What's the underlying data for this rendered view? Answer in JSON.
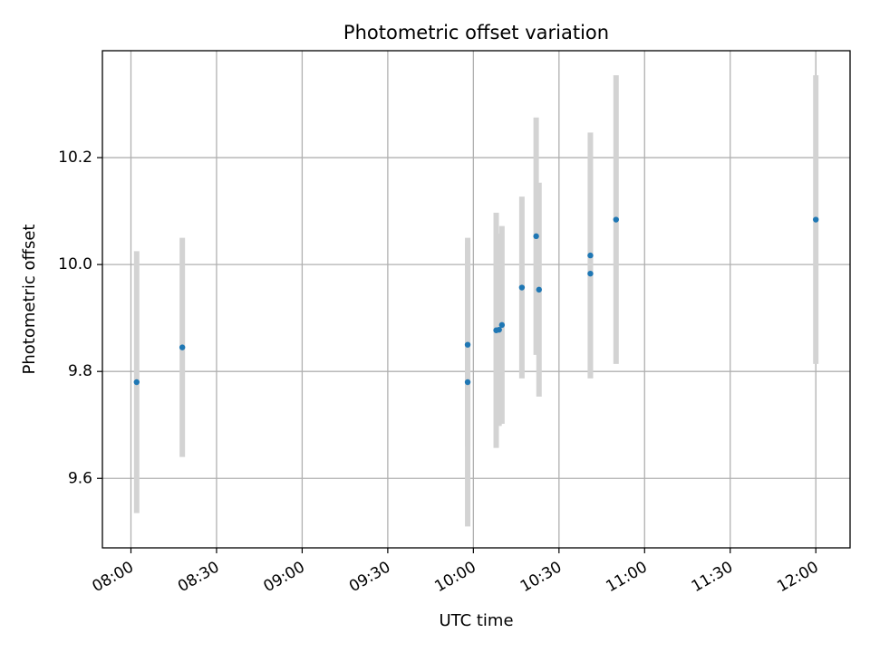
{
  "chart_data": {
    "type": "scatter",
    "title": "Photometric offset variation",
    "xlabel": "UTC time",
    "ylabel": "Photometric offset",
    "grid": true,
    "xlim": [
      "07:50",
      "12:12"
    ],
    "ylim": [
      9.47,
      10.4
    ],
    "x_ticks": [
      "08:00",
      "08:30",
      "09:00",
      "09:30",
      "10:00",
      "10:30",
      "11:00",
      "11:30",
      "12:00"
    ],
    "y_ticks": [
      9.6,
      9.8,
      10.0,
      10.2
    ],
    "y_tick_labels": [
      "9.6",
      "9.8",
      "10.0",
      "10.2"
    ],
    "colors": {
      "point": "#1f77b4",
      "errorbar": "#d3d3d3",
      "grid": "#b0b0b0",
      "axes": "#000000"
    },
    "points": [
      {
        "x": "08:02",
        "y": 9.78,
        "err": 0.245
      },
      {
        "x": "08:18",
        "y": 9.845,
        "err": 0.205
      },
      {
        "x": "09:58",
        "y": 9.78,
        "err": 0.27
      },
      {
        "x": "09:58",
        "y": 9.85,
        "err": 0.19
      },
      {
        "x": "10:08",
        "y": 9.877,
        "err": 0.22
      },
      {
        "x": "10:09",
        "y": 9.878,
        "err": 0.18
      },
      {
        "x": "10:10",
        "y": 9.887,
        "err": 0.185
      },
      {
        "x": "10:17",
        "y": 9.957,
        "err": 0.17
      },
      {
        "x": "10:22",
        "y": 10.053,
        "err": 0.222
      },
      {
        "x": "10:23",
        "y": 9.953,
        "err": 0.2
      },
      {
        "x": "10:41",
        "y": 9.983,
        "err": 0.195
      },
      {
        "x": "10:41",
        "y": 10.017,
        "err": 0.23
      },
      {
        "x": "10:50",
        "y": 10.084,
        "err": 0.27
      },
      {
        "x": "12:00",
        "y": 10.084,
        "err": 0.27
      }
    ]
  }
}
